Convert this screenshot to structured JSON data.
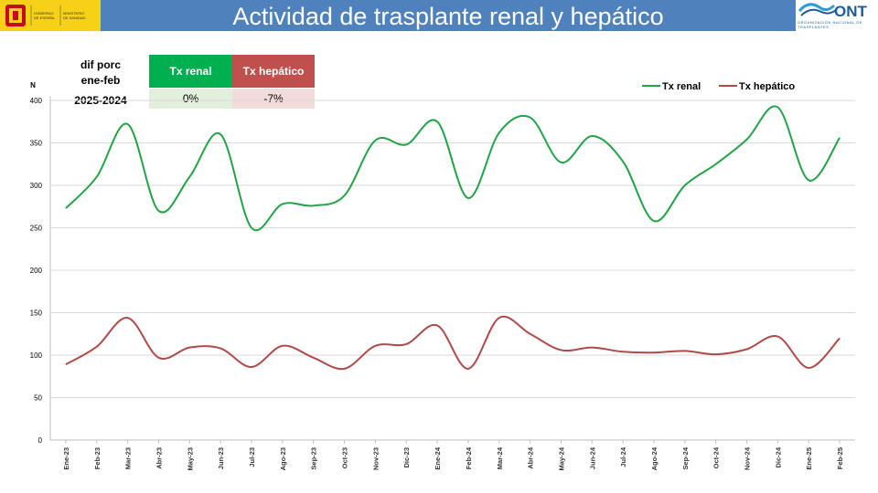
{
  "header": {
    "title": "Actividad de trasplante renal y hepático",
    "ministry_lines": [
      "GOBIERNO",
      "DE ESPAÑA"
    ],
    "ministry_name_lines": [
      "MINISTERIO",
      "DE SANIDAD"
    ],
    "ont_logo_text": "ONT",
    "ont_subtitle": "ORGANIZACIÓN NACIONAL DE TRASPLANTES"
  },
  "diff_table": {
    "label_line1": "dif porc",
    "label_line2": "ene-feb",
    "label_line3": "2025-2024",
    "col_renal": "Tx renal",
    "col_hepatico": "Tx hepático",
    "val_renal": "0%",
    "val_hepatico": "-7%"
  },
  "colors": {
    "header": "#4f81bd",
    "renal": "#21a346",
    "hepatico": "#b04a48",
    "renal_head_bg": "#00b050",
    "hepatico_head_bg": "#c0504d",
    "renal_val_bg": "#e2efda",
    "hepatico_val_bg": "#f2dcdb"
  },
  "chart_data": {
    "type": "line",
    "ylabel": "N",
    "ylim": [
      0,
      400
    ],
    "yticks": [
      "0",
      "50",
      "100",
      "150",
      "200",
      "250",
      "300",
      "350",
      "400"
    ],
    "grid": true,
    "legend_position": "top-right",
    "categories": [
      "Ene-23",
      "Feb-23",
      "Mar-23",
      "Abr-23",
      "May-23",
      "Jun-23",
      "Jul-23",
      "Ago-23",
      "Sep-23",
      "Oct-23",
      "Nov-23",
      "Dic-23",
      "Ene-24",
      "Feb-24",
      "Mar-24",
      "Abr-24",
      "May-24",
      "Jun-24",
      "Jul-24",
      "Ago-24",
      "Sep-24",
      "Oct-24",
      "Nov-24",
      "Dic-24",
      "Ene-25",
      "Feb-25"
    ],
    "series": [
      {
        "name": "Tx renal",
        "values": [
          273,
          310,
          372,
          270,
          310,
          360,
          250,
          278,
          276,
          288,
          353,
          348,
          375,
          285,
          362,
          380,
          327,
          358,
          328,
          258,
          300,
          325,
          354,
          392,
          306,
          356
        ]
      },
      {
        "name": "Tx hepático",
        "values": [
          89,
          110,
          144,
          97,
          109,
          108,
          86,
          111,
          97,
          84,
          111,
          113,
          135,
          84,
          144,
          125,
          106,
          109,
          104,
          103,
          105,
          101,
          107,
          122,
          85,
          120
        ]
      }
    ]
  }
}
